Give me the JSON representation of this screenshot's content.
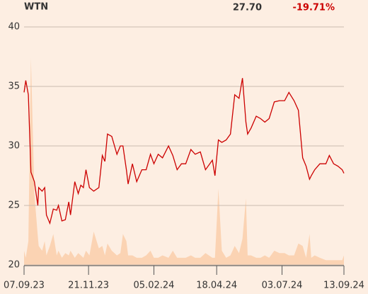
{
  "chart_data": {
    "type": "line",
    "title": "WTN",
    "last_price": "27.70",
    "change": "-19.71%",
    "x": [
      0,
      2,
      5,
      8,
      12,
      16,
      17,
      21,
      24,
      26,
      30,
      34,
      38,
      40,
      44,
      48,
      52,
      54,
      59,
      63,
      66,
      69,
      72,
      76,
      81,
      87,
      91,
      94,
      97,
      102,
      108,
      112,
      115,
      119,
      121,
      126,
      131,
      137,
      142,
      147,
      151,
      156,
      161,
      168,
      173,
      178,
      183,
      188,
      194,
      199,
      205,
      211,
      219,
      222,
      226,
      230,
      235,
      240,
      245,
      250,
      254,
      258,
      260,
      264,
      270,
      275,
      280,
      285,
      291,
      297,
      303,
      308,
      314,
      319,
      324,
      328,
      332,
      334,
      338,
      344,
      351,
      355,
      360,
      365,
      370,
      372
    ],
    "series": [
      {
        "name": "Price",
        "color": "#cc0000",
        "values": [
          34.5,
          35.5,
          34.3,
          27.8,
          27,
          25,
          26.5,
          26.2,
          26.5,
          24.2,
          23.5,
          24.7,
          24.6,
          25,
          23.7,
          23.8,
          25.3,
          24.2,
          27,
          26,
          26.7,
          26.5,
          28,
          26.5,
          26.2,
          26.5,
          29.2,
          28.7,
          31,
          30.8,
          29.3,
          30,
          30,
          28,
          26.8,
          28.5,
          27,
          28,
          28,
          29.3,
          28.5,
          29.3,
          29,
          30,
          29.2,
          28,
          28.5,
          28.5,
          29.7,
          29.3,
          29.5,
          28,
          28.8,
          27.5,
          30.5,
          30.3,
          30.5,
          31,
          34.3,
          34,
          35.7,
          32,
          31,
          31.5,
          32.5,
          32.3,
          32,
          32.3,
          33.7,
          33.8,
          33.8,
          34.5,
          33.8,
          33,
          29,
          28.3,
          27.2,
          27.5,
          28,
          28.5,
          28.5,
          29.2,
          28.5,
          28.3,
          28,
          27.7
        ]
      },
      {
        "name": "Volume",
        "color": "#fbd3b3",
        "axis": "y2",
        "values": [
          6,
          3,
          10,
          87,
          30,
          12,
          8,
          6,
          10,
          4,
          8,
          13,
          4,
          6,
          3,
          5,
          4,
          6,
          3,
          5,
          4,
          3,
          6,
          4,
          14,
          7,
          8,
          4,
          9,
          6,
          4,
          5,
          13,
          10,
          4,
          4,
          3,
          3,
          4,
          6,
          3,
          3,
          4,
          3,
          6,
          3,
          3,
          3,
          4,
          3,
          3,
          5,
          3,
          3,
          32,
          6,
          3,
          4,
          8,
          5,
          11,
          28,
          4,
          4,
          3,
          3,
          4,
          3,
          6,
          5,
          5,
          4,
          4,
          9,
          8,
          3,
          13,
          3,
          4,
          3,
          2,
          2,
          2,
          2,
          2,
          4
        ]
      }
    ],
    "xlim": [
      0,
      372
    ],
    "xticks": [
      {
        "value": 0,
        "label": "07.09.23"
      },
      {
        "value": 75,
        "label": "21.11.23"
      },
      {
        "value": 151,
        "label": "05.02.24"
      },
      {
        "value": 224,
        "label": "18.04.24"
      },
      {
        "value": 300,
        "label": "03.07.24"
      },
      {
        "value": 372,
        "label": "13.09.24"
      }
    ],
    "ylim": [
      20,
      40
    ],
    "yticks": [
      20,
      25,
      30,
      35,
      40
    ],
    "y2lim": [
      0,
      100
    ],
    "grid": true
  }
}
